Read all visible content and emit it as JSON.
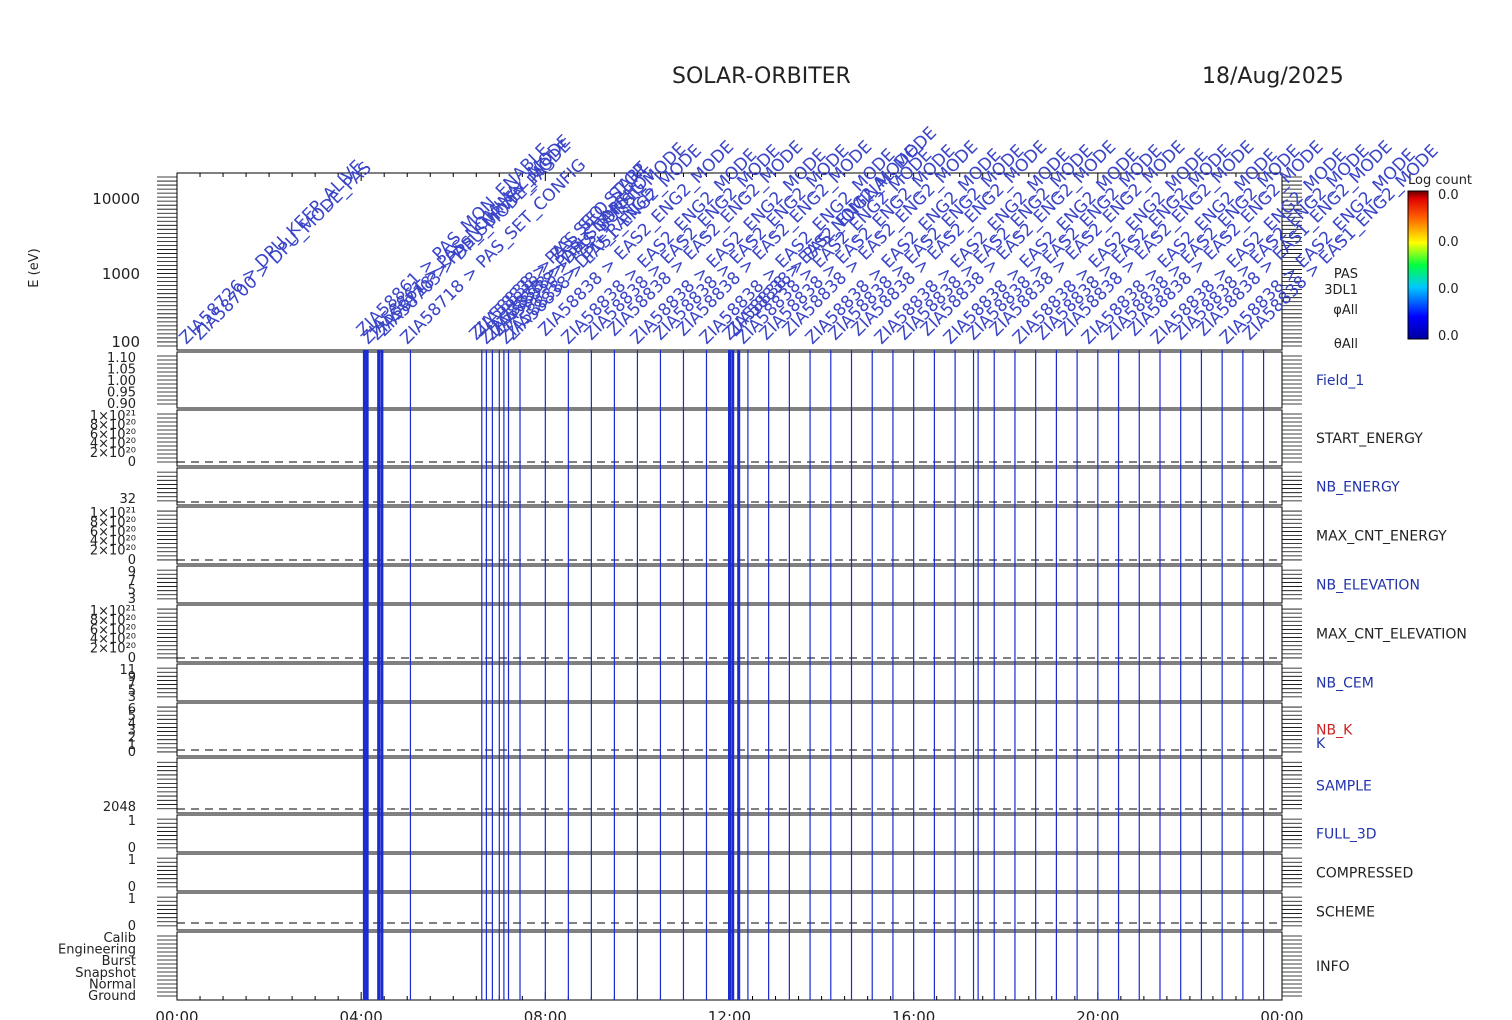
{
  "header": {
    "title": "SOLAR-ORBITER",
    "date": "18/Aug/2025"
  },
  "colorbar": {
    "title": "Log count",
    "ticks": [
      "0.0",
      "0.0",
      "0.0",
      "0.0"
    ]
  },
  "chart_data": {
    "type": "line",
    "xaxis": {
      "ticks": [
        "00:00",
        "04:00",
        "08:00",
        "12:00",
        "16:00",
        "20:00",
        "00:00"
      ],
      "range_hours": [
        0,
        24
      ]
    },
    "panels": [
      {
        "label": "E (eV)",
        "type": "heatmap",
        "scale": "log",
        "ylim": [
          100,
          20000
        ],
        "ticks": [
          "10000",
          "1000",
          "100"
        ],
        "right_labels": [
          "PAS",
          "3DL1",
          "φAll",
          "θAll"
        ]
      },
      {
        "name": "Field_1",
        "label_color": "#2233aa",
        "ticks": [
          "1.10",
          "1.05",
          "1.00",
          "0.95",
          "0.90"
        ]
      },
      {
        "name": "START_ENERGY",
        "label_color": "#222222",
        "ticks": [
          "1×10²¹",
          "8×10²⁰",
          "6×10²⁰",
          "4×10²⁰",
          "2×10²⁰",
          "0"
        ]
      },
      {
        "name": "NB_ENERGY",
        "label_color": "#2233aa",
        "ticks": [
          "32"
        ]
      },
      {
        "name": "MAX_CNT_ENERGY",
        "label_color": "#222222",
        "ticks": [
          "1×10²¹",
          "8×10²⁰",
          "6×10²⁰",
          "4×10²⁰",
          "2×10²⁰",
          "0"
        ]
      },
      {
        "name": "NB_ELEVATION",
        "label_color": "#2233aa",
        "ticks": [
          "9",
          "7",
          "5",
          "3"
        ]
      },
      {
        "name": "MAX_CNT_ELEVATION",
        "label_color": "#222222",
        "ticks": [
          "1×10²¹",
          "8×10²⁰",
          "6×10²⁰",
          "4×10²⁰",
          "2×10²⁰",
          "0"
        ]
      },
      {
        "name": "NB_CEM",
        "label_color": "#2233aa",
        "ticks": [
          "11",
          "9",
          "7",
          "5",
          "3"
        ]
      },
      {
        "name": "NB_K",
        "label_color": "#cc2222",
        "ticks": [
          "6",
          "5",
          "4",
          "3",
          "2",
          "1",
          "0"
        ]
      },
      {
        "name": "K",
        "label_color": "#2233aa",
        "ticks": []
      },
      {
        "name": "SAMPLE",
        "label_color": "#2233aa",
        "ticks": [
          "2048"
        ]
      },
      {
        "name": "FULL_3D",
        "label_color": "#2233aa",
        "ticks": [
          "1",
          "0"
        ]
      },
      {
        "name": "COMPRESSED",
        "label_color": "#222222",
        "ticks": [
          "1",
          "0"
        ]
      },
      {
        "name": "SCHEME",
        "label_color": "#222222",
        "ticks": [
          "1",
          "0"
        ]
      },
      {
        "name": "INFO",
        "label_color": "#222222",
        "ticks": [
          "Calib",
          "Engineering",
          "Burst",
          "Snapshot",
          "Normal",
          "Ground"
        ]
      }
    ],
    "event_times_hours": [
      4.07,
      4.13,
      4.38,
      4.45,
      5.07,
      6.62,
      6.72,
      6.85,
      7.0,
      7.1,
      7.2,
      7.45,
      8.0,
      8.5,
      9.0,
      9.5,
      10.0,
      10.5,
      11.0,
      11.5,
      12.0,
      12.07,
      12.2,
      12.4,
      12.85,
      13.3,
      13.75,
      14.2,
      14.65,
      15.1,
      15.55,
      16.0,
      16.45,
      16.9,
      17.3,
      17.4,
      17.75,
      18.2,
      18.65,
      19.1,
      19.55,
      20.0,
      20.45,
      20.9,
      21.35,
      21.8,
      22.25,
      22.7,
      23.15,
      23.6
    ],
    "bold_event_times_hours": [
      4.07,
      4.13,
      4.38,
      4.45,
      12.0,
      12.07,
      12.2
    ]
  },
  "annotations": [
    {
      "time": 0.2,
      "text": "ZIA58726 > DPU_KEEP_ALIVE"
    },
    {
      "time": 0.5,
      "text": "ZIA58700 > DPU_MODE_PAS"
    },
    {
      "time": 4.05,
      "text": "ZIA58861 > PAS_MON_ENABLE"
    },
    {
      "time": 4.15,
      "text": "ZIA58861 > PAS_NOMINAL_MODE"
    },
    {
      "time": 4.35,
      "text": "ZIA58718 > PAS_SURVEY_MODE"
    },
    {
      "time": 4.5,
      "text": "ZIA58703 > DPU_MODE_PAS"
    },
    {
      "time": 5.0,
      "text": "ZIA58718 > PAS_SET_CONFIG"
    },
    {
      "time": 6.5,
      "text": "ZIA58838 > PAS_SEQ_START"
    },
    {
      "time": 6.6,
      "text": "ZIA58838 > PAS_SEQ_STOP"
    },
    {
      "time": 6.72,
      "text": "ZIA58838 > PAS_SNAPSHOT"
    },
    {
      "time": 6.85,
      "text": "ZIA58838 > DPU_CONFIG"
    },
    {
      "time": 7.0,
      "text": "ZIA58838 > PAS_BURST_MODE"
    },
    {
      "time": 7.15,
      "text": "ZIA58838 > DPU_RANGE"
    },
    {
      "time": 7.3,
      "text": "ZIA58838 > EAS1_ENG2_MODE"
    },
    {
      "time": 8.0,
      "text": "ZIA58838 > EAS2_ENG2_MODE"
    },
    {
      "time": 8.5,
      "text": "ZIA58838 > EAS2_ENG2_MODE"
    },
    {
      "time": 9.0,
      "text": "ZIA58838 > EAS2_ENG2_MODE"
    },
    {
      "time": 9.5,
      "text": "ZIA58838 > EAS2_ENG2_MODE"
    },
    {
      "time": 10.0,
      "text": "ZIA58838 > EAS2_ENG2_MODE"
    },
    {
      "time": 10.5,
      "text": "ZIA58838 > EAS2_ENG2_MODE"
    },
    {
      "time": 11.0,
      "text": "ZIA58838 > EAS2_ENG2_MODE"
    },
    {
      "time": 11.5,
      "text": "ZIA58838 > EAS2_ENG2_MODE"
    },
    {
      "time": 12.0,
      "text": "ZIA58838 > EAS2_ENG2_MODE"
    },
    {
      "time": 12.1,
      "text": "ZIA58838 > PAS_NOMINAL_MODE"
    },
    {
      "time": 12.3,
      "text": "ZIA58838 > EAS2_ENG2_MODE"
    },
    {
      "time": 12.8,
      "text": "ZIA58838 > EAS2_ENG2_MODE"
    },
    {
      "time": 13.3,
      "text": "ZIA58838 > EAS2_ENG2_MODE"
    },
    {
      "time": 13.8,
      "text": "ZIA58838 > EAS2_ENG2_MODE"
    },
    {
      "time": 14.3,
      "text": "ZIA58838 > EAS2_ENG2_MODE"
    },
    {
      "time": 14.8,
      "text": "ZIA58838 > EAS2_ENG2_MODE"
    },
    {
      "time": 15.3,
      "text": "ZIA58838 > EAS2_ENG2_MODE"
    },
    {
      "time": 15.8,
      "text": "ZIA58838 > EAS2_ENG2_MODE"
    },
    {
      "time": 16.3,
      "text": "ZIA58838 > EAS2_ENG2_MODE"
    },
    {
      "time": 16.8,
      "text": "ZIA58838 > EAS2_ENG2_MODE"
    },
    {
      "time": 17.3,
      "text": "ZIA58838 > EAS2_ENG2_MODE"
    },
    {
      "time": 17.8,
      "text": "ZIA58838 > EAS2_ENG2_MODE"
    },
    {
      "time": 18.3,
      "text": "ZIA58838 > EAS2_ENG2_MODE"
    },
    {
      "time": 18.8,
      "text": "ZIA58838 > EAS2_ENG2_MODE"
    },
    {
      "time": 19.3,
      "text": "ZIA58838 > EAS2_ENG2_MODE"
    },
    {
      "time": 19.8,
      "text": "ZIA58838 > EAS2_ENG2_MODE"
    },
    {
      "time": 20.3,
      "text": "ZIA58838 > EAS2_ENG2_MODE"
    },
    {
      "time": 20.8,
      "text": "ZIA58838 > EAS2_ENG2_MODE"
    },
    {
      "time": 21.3,
      "text": "ZIA58838 > EAS2_ENG2_MODE"
    },
    {
      "time": 21.8,
      "text": "ZIA58838 > EAS2_ENG2_MODE"
    },
    {
      "time": 22.3,
      "text": "ZIA58838 > EAS1_ENG2_MODE"
    },
    {
      "time": 22.8,
      "text": "ZIA58838 > EAS2_ENG2_MODE"
    },
    {
      "time": 23.3,
      "text": "ZIA58838 > EAS1_ENG2_MODE"
    }
  ]
}
